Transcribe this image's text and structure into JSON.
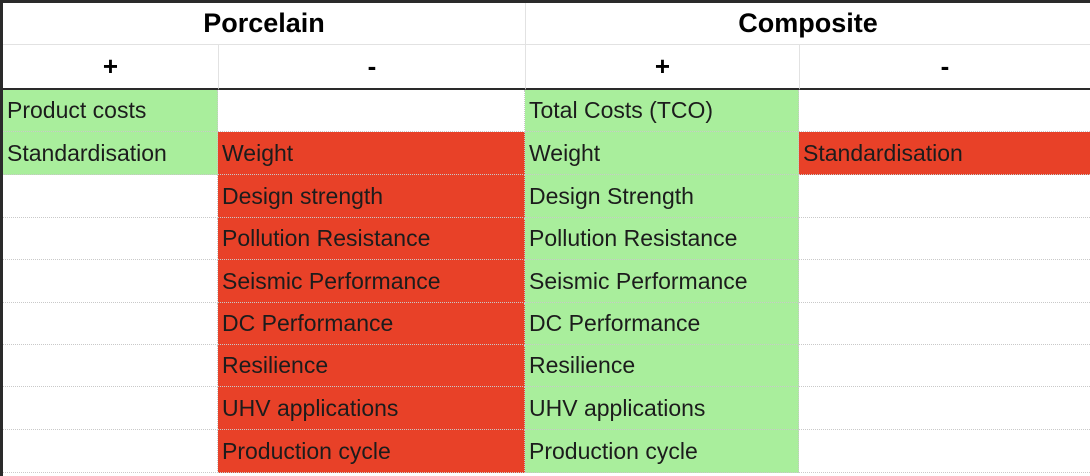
{
  "header": {
    "porcelain": "Porcelain",
    "composite": "Composite"
  },
  "signs": [
    "+",
    "-",
    "+",
    "-"
  ],
  "rows": [
    [
      "Product costs",
      "",
      "Total Costs (TCO)",
      ""
    ],
    [
      "Standardisation",
      "Weight",
      "Weight",
      "Standardisation"
    ],
    [
      "",
      "Design strength",
      "Design Strength",
      ""
    ],
    [
      "",
      "Pollution Resistance",
      "Pollution Resistance",
      ""
    ],
    [
      "",
      "Seismic Performance",
      "Seismic Performance",
      ""
    ],
    [
      "",
      "DC Performance",
      "DC Performance",
      ""
    ],
    [
      "",
      "Resilience",
      "Resilience",
      ""
    ],
    [
      "",
      "UHV applications",
      "UHV applications",
      ""
    ],
    [
      "",
      "Production cycle",
      "Production cycle",
      ""
    ]
  ],
  "colors": {
    "advantage": "#a9ee9c",
    "disadvantage": "#e84128"
  }
}
